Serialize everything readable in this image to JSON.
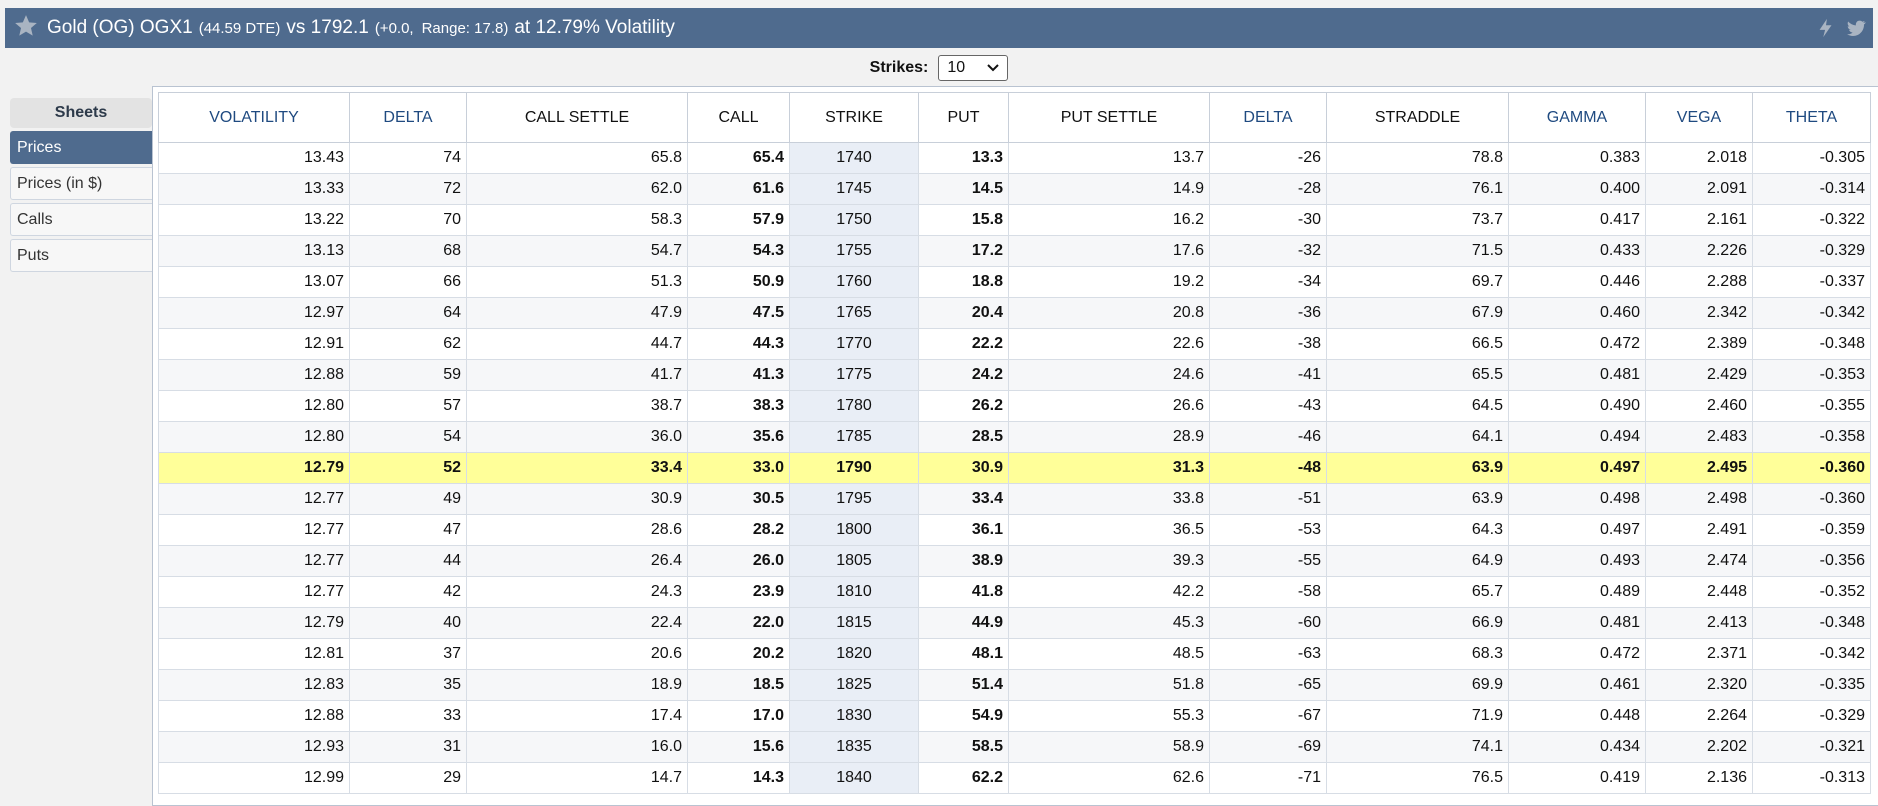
{
  "header": {
    "title_symbol": "Gold (OG) OGX1",
    "dte": "(44.59 DTE)",
    "vs_label": "vs 1792.1",
    "change": "(+0.0,",
    "range": "Range: 17.8)",
    "volatility": "at 12.79% Volatility",
    "colors": {
      "bar": "#4f6b8e",
      "atm_highlight": "#ffff99"
    },
    "icons": [
      "star-icon",
      "flash-icon",
      "twitter-icon"
    ]
  },
  "strikes": {
    "label": "Strikes:",
    "value": "10"
  },
  "sheets": {
    "header": "Sheets",
    "items": [
      {
        "label": "Prices",
        "active": true
      },
      {
        "label": "Prices (in $)",
        "active": false
      },
      {
        "label": "Calls",
        "active": false
      },
      {
        "label": "Puts",
        "active": false
      }
    ]
  },
  "table": {
    "columns": [
      "VOLATILITY",
      "DELTA",
      "CALL SETTLE",
      "CALL",
      "STRIKE",
      "PUT",
      "PUT SETTLE",
      "DELTA",
      "STRADDLE",
      "GAMMA",
      "VEGA",
      "THETA"
    ],
    "atm_strike": "1790",
    "rows": [
      [
        "13.43",
        "74",
        "65.8",
        "65.4",
        "1740",
        "13.3",
        "13.7",
        "-26",
        "78.8",
        "0.383",
        "2.018",
        "-0.305"
      ],
      [
        "13.33",
        "72",
        "62.0",
        "61.6",
        "1745",
        "14.5",
        "14.9",
        "-28",
        "76.1",
        "0.400",
        "2.091",
        "-0.314"
      ],
      [
        "13.22",
        "70",
        "58.3",
        "57.9",
        "1750",
        "15.8",
        "16.2",
        "-30",
        "73.7",
        "0.417",
        "2.161",
        "-0.322"
      ],
      [
        "13.13",
        "68",
        "54.7",
        "54.3",
        "1755",
        "17.2",
        "17.6",
        "-32",
        "71.5",
        "0.433",
        "2.226",
        "-0.329"
      ],
      [
        "13.07",
        "66",
        "51.3",
        "50.9",
        "1760",
        "18.8",
        "19.2",
        "-34",
        "69.7",
        "0.446",
        "2.288",
        "-0.337"
      ],
      [
        "12.97",
        "64",
        "47.9",
        "47.5",
        "1765",
        "20.4",
        "20.8",
        "-36",
        "67.9",
        "0.460",
        "2.342",
        "-0.342"
      ],
      [
        "12.91",
        "62",
        "44.7",
        "44.3",
        "1770",
        "22.2",
        "22.6",
        "-38",
        "66.5",
        "0.472",
        "2.389",
        "-0.348"
      ],
      [
        "12.88",
        "59",
        "41.7",
        "41.3",
        "1775",
        "24.2",
        "24.6",
        "-41",
        "65.5",
        "0.481",
        "2.429",
        "-0.353"
      ],
      [
        "12.80",
        "57",
        "38.7",
        "38.3",
        "1780",
        "26.2",
        "26.6",
        "-43",
        "64.5",
        "0.490",
        "2.460",
        "-0.355"
      ],
      [
        "12.80",
        "54",
        "36.0",
        "35.6",
        "1785",
        "28.5",
        "28.9",
        "-46",
        "64.1",
        "0.494",
        "2.483",
        "-0.358"
      ],
      [
        "12.79",
        "52",
        "33.4",
        "33.0",
        "1790",
        "30.9",
        "31.3",
        "-48",
        "63.9",
        "0.497",
        "2.495",
        "-0.360"
      ],
      [
        "12.77",
        "49",
        "30.9",
        "30.5",
        "1795",
        "33.4",
        "33.8",
        "-51",
        "63.9",
        "0.498",
        "2.498",
        "-0.360"
      ],
      [
        "12.77",
        "47",
        "28.6",
        "28.2",
        "1800",
        "36.1",
        "36.5",
        "-53",
        "64.3",
        "0.497",
        "2.491",
        "-0.359"
      ],
      [
        "12.77",
        "44",
        "26.4",
        "26.0",
        "1805",
        "38.9",
        "39.3",
        "-55",
        "64.9",
        "0.493",
        "2.474",
        "-0.356"
      ],
      [
        "12.77",
        "42",
        "24.3",
        "23.9",
        "1810",
        "41.8",
        "42.2",
        "-58",
        "65.7",
        "0.489",
        "2.448",
        "-0.352"
      ],
      [
        "12.79",
        "40",
        "22.4",
        "22.0",
        "1815",
        "44.9",
        "45.3",
        "-60",
        "66.9",
        "0.481",
        "2.413",
        "-0.348"
      ],
      [
        "12.81",
        "37",
        "20.6",
        "20.2",
        "1820",
        "48.1",
        "48.5",
        "-63",
        "68.3",
        "0.472",
        "2.371",
        "-0.342"
      ],
      [
        "12.83",
        "35",
        "18.9",
        "18.5",
        "1825",
        "51.4",
        "51.8",
        "-65",
        "69.9",
        "0.461",
        "2.320",
        "-0.335"
      ],
      [
        "12.88",
        "33",
        "17.4",
        "17.0",
        "1830",
        "54.9",
        "55.3",
        "-67",
        "71.9",
        "0.448",
        "2.264",
        "-0.329"
      ],
      [
        "12.93",
        "31",
        "16.0",
        "15.6",
        "1835",
        "58.5",
        "58.9",
        "-69",
        "74.1",
        "0.434",
        "2.202",
        "-0.321"
      ],
      [
        "12.99",
        "29",
        "14.7",
        "14.3",
        "1840",
        "62.2",
        "62.6",
        "-71",
        "76.5",
        "0.419",
        "2.136",
        "-0.313"
      ]
    ]
  }
}
